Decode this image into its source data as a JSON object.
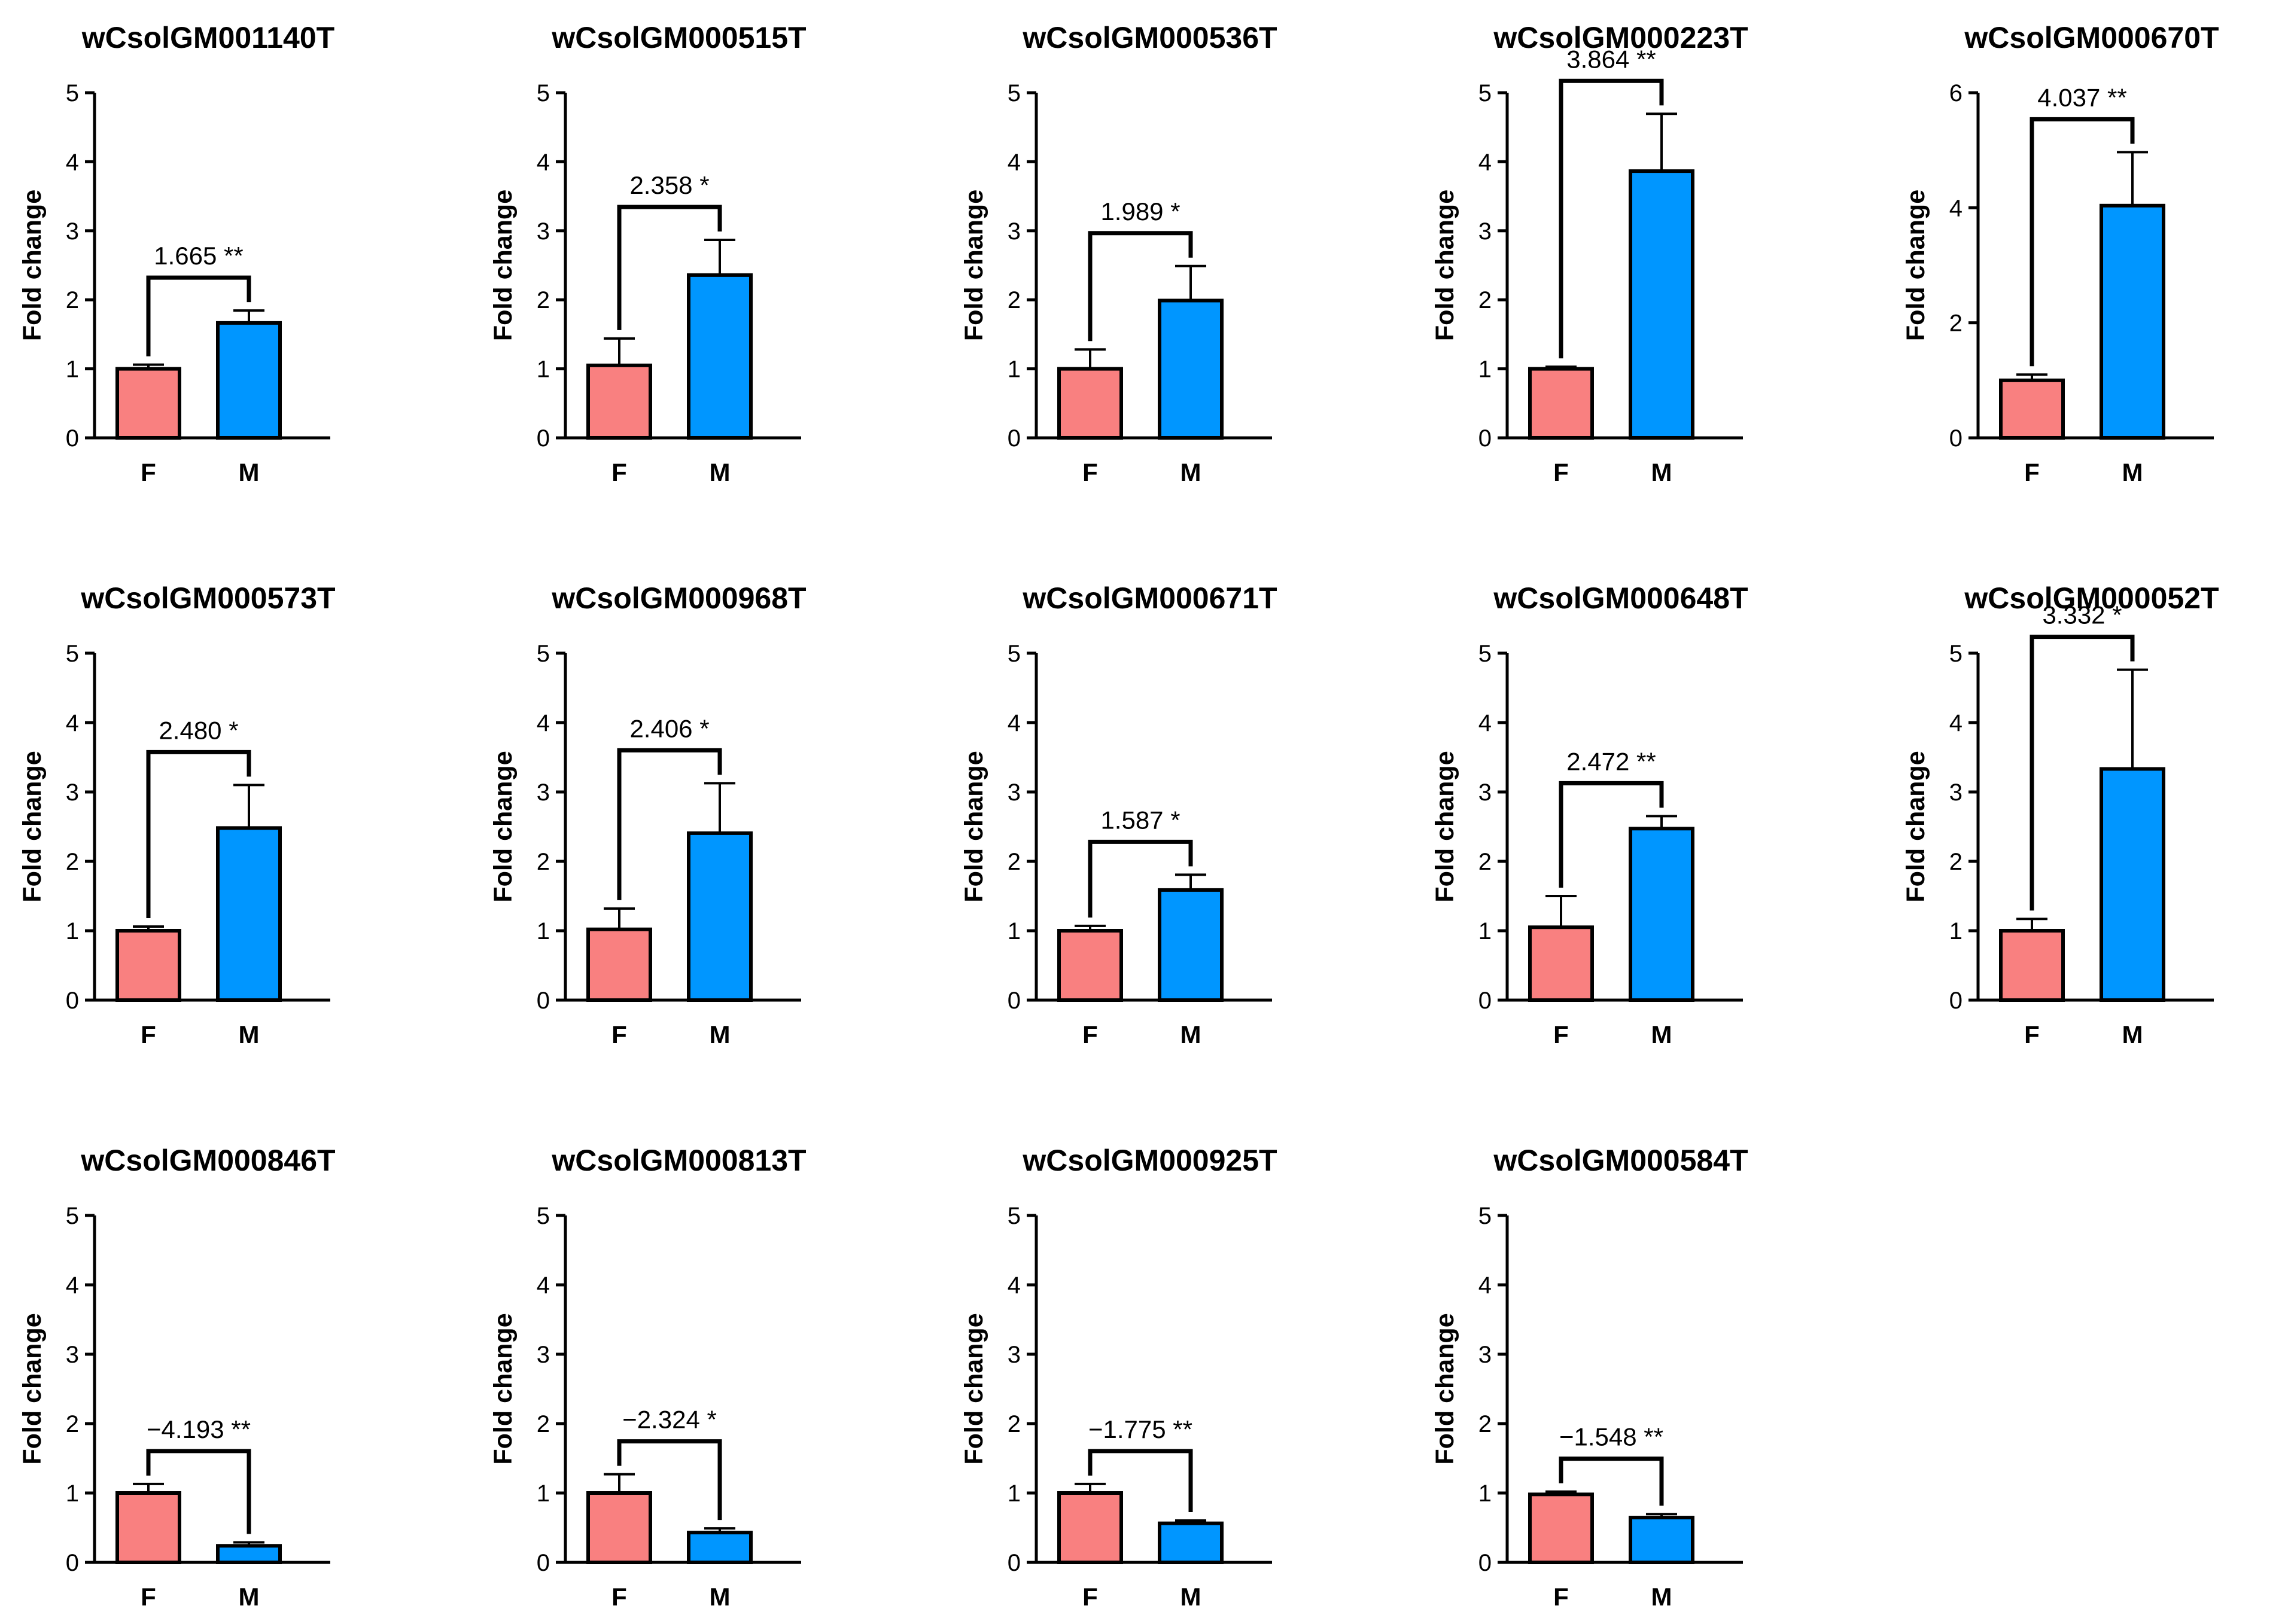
{
  "colors": {
    "female": "#F98080",
    "male": "#0096FF",
    "stroke": "#000000"
  },
  "chart_data": [
    {
      "type": "bar",
      "title": "wCsolGM001140T",
      "ylabel": "Fold change",
      "categories": [
        "F",
        "M"
      ],
      "values": [
        1.0,
        1.665
      ],
      "errors": [
        0.06,
        0.18
      ],
      "ylim": [
        0,
        5
      ],
      "yticks": [
        "0",
        "1",
        "2",
        "3",
        "4",
        "5"
      ],
      "annotation": "1.665 **"
    },
    {
      "type": "bar",
      "title": "wCsolGM000515T",
      "ylabel": "Fold change",
      "categories": [
        "F",
        "M"
      ],
      "values": [
        1.05,
        2.358
      ],
      "errors": [
        0.39,
        0.51
      ],
      "ylim": [
        0,
        5
      ],
      "yticks": [
        "0",
        "1",
        "2",
        "3",
        "4",
        "5"
      ],
      "annotation": "2.358 *"
    },
    {
      "type": "bar",
      "title": "wCsolGM000536T",
      "ylabel": "Fold change",
      "categories": [
        "F",
        "M"
      ],
      "values": [
        1.0,
        1.989
      ],
      "errors": [
        0.28,
        0.5
      ],
      "ylim": [
        0,
        5
      ],
      "yticks": [
        "0",
        "1",
        "2",
        "3",
        "4",
        "5"
      ],
      "annotation": "1.989 *"
    },
    {
      "type": "bar",
      "title": "wCsolGM000223T",
      "ylabel": "Fold change",
      "categories": [
        "F",
        "M"
      ],
      "values": [
        1.0,
        3.864
      ],
      "errors": [
        0.03,
        0.83
      ],
      "ylim": [
        0,
        5
      ],
      "yticks": [
        "0",
        "1",
        "2",
        "3",
        "4",
        "5"
      ],
      "annotation": "3.864 **"
    },
    {
      "type": "bar",
      "title": "wCsolGM000670T",
      "ylabel": "Fold change",
      "categories": [
        "F",
        "M"
      ],
      "values": [
        1.0,
        4.037
      ],
      "errors": [
        0.1,
        0.93
      ],
      "ylim": [
        0,
        6
      ],
      "yticks": [
        "0",
        "2",
        "4",
        "6"
      ],
      "annotation": "4.037 **"
    },
    {
      "type": "bar",
      "title": "wCsolGM000573T",
      "ylabel": "Fold change",
      "categories": [
        "F",
        "M"
      ],
      "values": [
        1.0,
        2.48
      ],
      "errors": [
        0.06,
        0.62
      ],
      "ylim": [
        0,
        5
      ],
      "yticks": [
        "0",
        "1",
        "2",
        "3",
        "4",
        "5"
      ],
      "annotation": "2.480 *"
    },
    {
      "type": "bar",
      "title": "wCsolGM000968T",
      "ylabel": "Fold change",
      "categories": [
        "F",
        "M"
      ],
      "values": [
        1.02,
        2.406
      ],
      "errors": [
        0.3,
        0.72
      ],
      "ylim": [
        0,
        5
      ],
      "yticks": [
        "0",
        "1",
        "2",
        "3",
        "4",
        "5"
      ],
      "annotation": "2.406 *"
    },
    {
      "type": "bar",
      "title": "wCsolGM000671T",
      "ylabel": "Fold change",
      "categories": [
        "F",
        "M"
      ],
      "values": [
        1.0,
        1.587
      ],
      "errors": [
        0.07,
        0.22
      ],
      "ylim": [
        0,
        5
      ],
      "yticks": [
        "0",
        "1",
        "2",
        "3",
        "4",
        "5"
      ],
      "annotation": "1.587 *"
    },
    {
      "type": "bar",
      "title": "wCsolGM000648T",
      "ylabel": "Fold change",
      "categories": [
        "F",
        "M"
      ],
      "values": [
        1.05,
        2.472
      ],
      "errors": [
        0.45,
        0.18
      ],
      "ylim": [
        0,
        5
      ],
      "yticks": [
        "0",
        "1",
        "2",
        "3",
        "4",
        "5"
      ],
      "annotation": "2.472 **"
    },
    {
      "type": "bar",
      "title": "wCsolGM000052T",
      "ylabel": "Fold change",
      "categories": [
        "F",
        "M"
      ],
      "values": [
        1.0,
        3.332
      ],
      "errors": [
        0.17,
        1.43
      ],
      "ylim": [
        0,
        5
      ],
      "yticks": [
        "0",
        "1",
        "2",
        "3",
        "4",
        "5"
      ],
      "annotation": "3.332 *"
    },
    {
      "type": "bar",
      "title": "wCsolGM000846T",
      "ylabel": "Fold change",
      "categories": [
        "F",
        "M"
      ],
      "values": [
        1.0,
        0.239
      ],
      "errors": [
        0.13,
        0.05
      ],
      "ylim": [
        0,
        5
      ],
      "yticks": [
        "0",
        "1",
        "2",
        "3",
        "4",
        "5"
      ],
      "annotation": "−4.193 **"
    },
    {
      "type": "bar",
      "title": "wCsolGM000813T",
      "ylabel": "Fold change",
      "categories": [
        "F",
        "M"
      ],
      "values": [
        1.0,
        0.43
      ],
      "errors": [
        0.27,
        0.06
      ],
      "ylim": [
        0,
        5
      ],
      "yticks": [
        "0",
        "1",
        "2",
        "3",
        "4",
        "5"
      ],
      "annotation": "−2.324 *"
    },
    {
      "type": "bar",
      "title": "wCsolGM000925T",
      "ylabel": "Fold change",
      "categories": [
        "F",
        "M"
      ],
      "values": [
        1.0,
        0.563
      ],
      "errors": [
        0.13,
        0.04
      ],
      "ylim": [
        0,
        5
      ],
      "yticks": [
        "0",
        "1",
        "2",
        "3",
        "4",
        "5"
      ],
      "annotation": "−1.775 **"
    },
    {
      "type": "bar",
      "title": "wCsolGM000584T",
      "ylabel": "Fold change",
      "categories": [
        "F",
        "M"
      ],
      "values": [
        0.98,
        0.646
      ],
      "errors": [
        0.04,
        0.05
      ],
      "ylim": [
        0,
        5
      ],
      "yticks": [
        "0",
        "1",
        "2",
        "3",
        "4",
        "5"
      ],
      "annotation": "−1.548 **"
    }
  ]
}
